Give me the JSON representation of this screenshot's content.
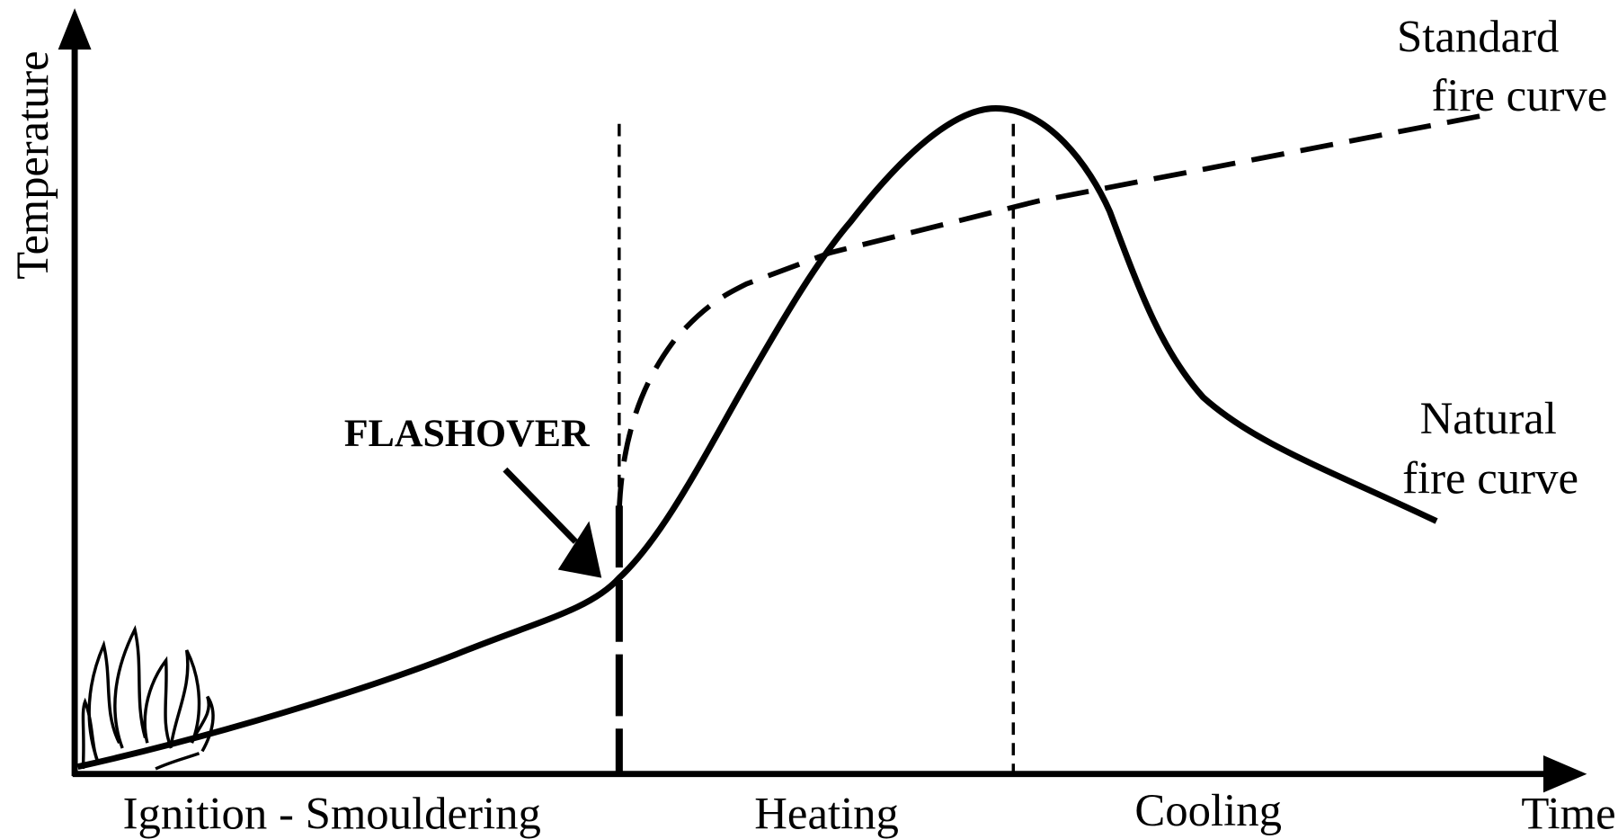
{
  "axes": {
    "y_label": "Temperature",
    "x_label": "Time"
  },
  "curves": [
    {
      "label_lines": [
        "Standard",
        "fire curve"
      ]
    },
    {
      "label_lines": [
        "Natural",
        "fire curve"
      ]
    }
  ],
  "annotation": "FLASHOVER",
  "phases": [
    "Ignition - Smouldering",
    "Heating",
    "Cooling"
  ]
}
